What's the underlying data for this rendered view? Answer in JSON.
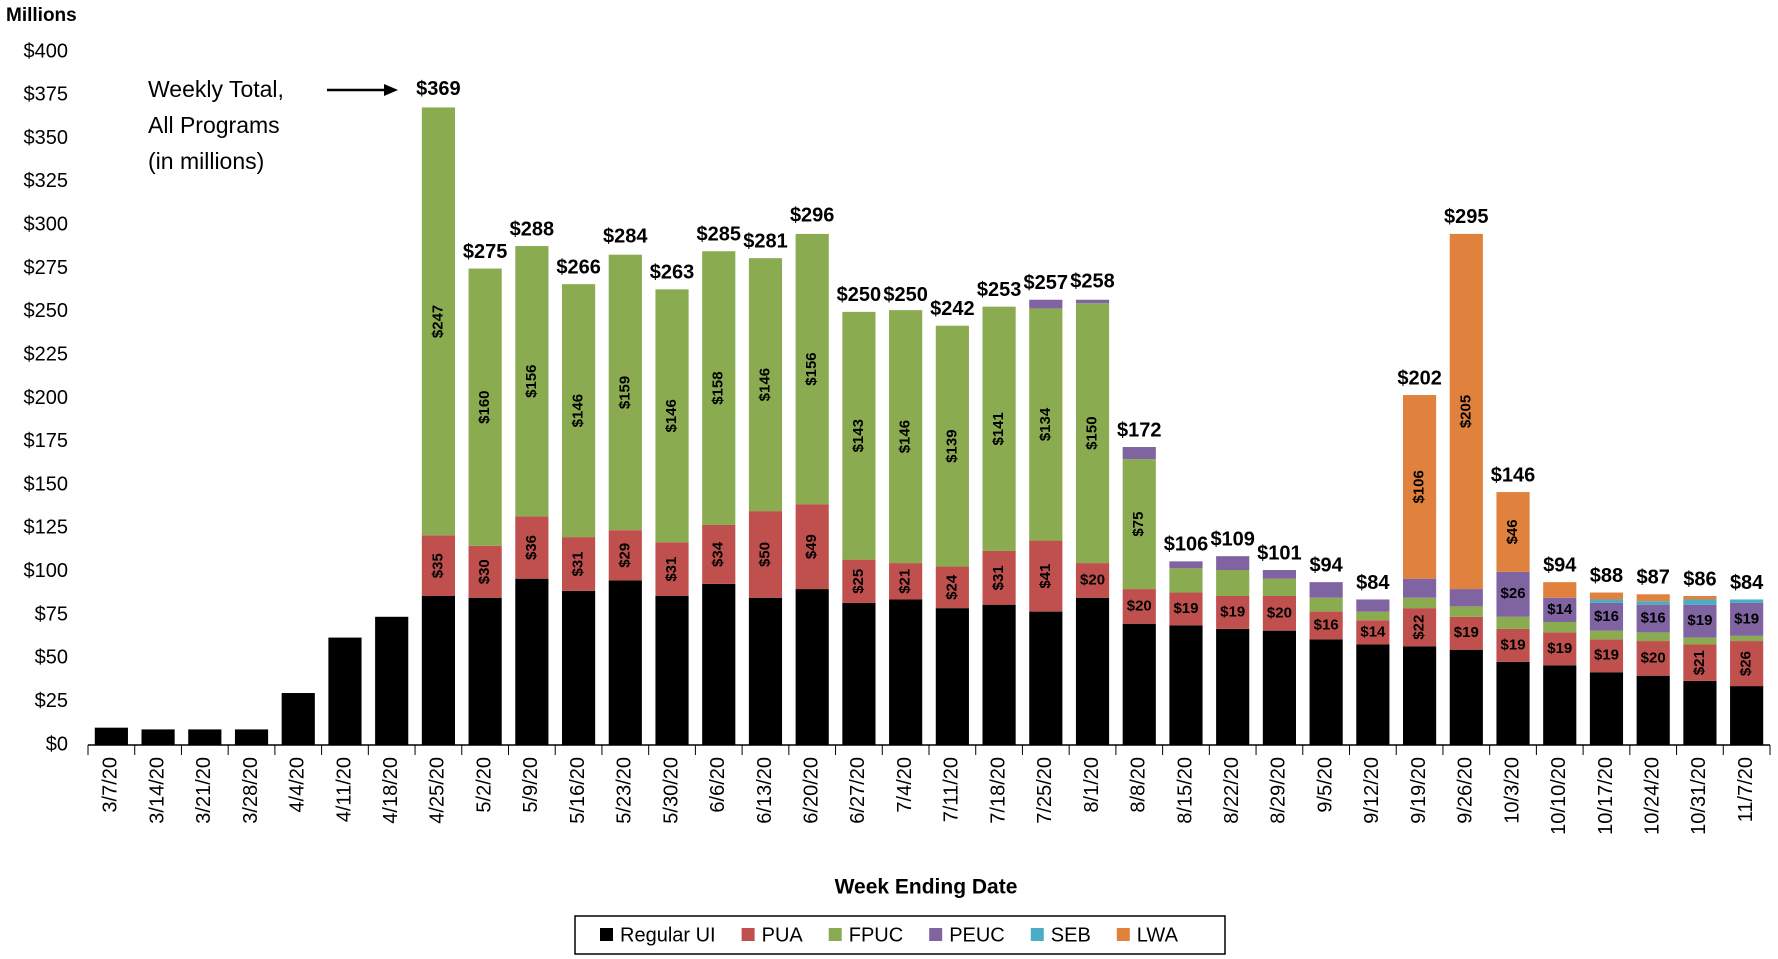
{
  "chart_data": {
    "type": "stacked-bar",
    "y_axis_title": "Millions",
    "x_axis_title": "Week Ending Date",
    "annotation": [
      "Weekly Total,",
      "All Programs",
      "(in millions)"
    ],
    "categories": [
      "3/7/20",
      "3/14/20",
      "3/21/20",
      "3/28/20",
      "4/4/20",
      "4/11/20",
      "4/18/20",
      "4/25/20",
      "5/2/20",
      "5/9/20",
      "5/16/20",
      "5/23/20",
      "5/30/20",
      "6/6/20",
      "6/13/20",
      "6/20/20",
      "6/27/20",
      "7/4/20",
      "7/11/20",
      "7/18/20",
      "7/25/20",
      "8/1/20",
      "8/8/20",
      "8/15/20",
      "8/22/20",
      "8/29/20",
      "9/5/20",
      "9/12/20",
      "9/19/20",
      "9/26/20",
      "10/3/20",
      "10/10/20",
      "10/17/20",
      "10/24/20",
      "10/31/20",
      "11/7/20"
    ],
    "series": [
      {
        "name": "Regular UI",
        "color": "#000000",
        "values": [
          10,
          9,
          9,
          9,
          30,
          62,
          74,
          86,
          85,
          96,
          89,
          95,
          86,
          93,
          85,
          90,
          82,
          84,
          79,
          81,
          77,
          85,
          70,
          69,
          67,
          66,
          61,
          58,
          57,
          55,
          48,
          46,
          42,
          40,
          37,
          34
        ],
        "value_labels": [
          null,
          null,
          null,
          null,
          "$30",
          "$62",
          "$74",
          "$86",
          "$85",
          "$96",
          "$89",
          "$95",
          "$86",
          "$93",
          "$85",
          "$90",
          "$82",
          "$84",
          "$79",
          "$81",
          "$77",
          "$85",
          "$70",
          "$69",
          "$67",
          "$66",
          "$61",
          "$58",
          "$57",
          "$55",
          "$48",
          "$46",
          "$42",
          "$40",
          "$37",
          "$34"
        ]
      },
      {
        "name": "PUA",
        "color": "#c0504d",
        "values": [
          0,
          0,
          0,
          0,
          0,
          0,
          0,
          35,
          30,
          36,
          31,
          29,
          31,
          34,
          50,
          49,
          25,
          21,
          24,
          31,
          41,
          20,
          20,
          19,
          19,
          20,
          16,
          14,
          22,
          19,
          19,
          19,
          19,
          20,
          21,
          26
        ],
        "value_labels": [
          null,
          null,
          null,
          null,
          null,
          null,
          null,
          "$35",
          "$30",
          "$36",
          "$31",
          "$29",
          "$31",
          "$34",
          "$50",
          "$49",
          "$25",
          "$21",
          "$24",
          "$31",
          "$41",
          "$20",
          "$20",
          "$19",
          "$19",
          "$20",
          "$16",
          "$14",
          "$22",
          "$19",
          "$19",
          "$19",
          "$19",
          "$20",
          "$21",
          "$26"
        ]
      },
      {
        "name": "FPUC",
        "color": "#8aab4f",
        "values": [
          0,
          0,
          0,
          0,
          0,
          0,
          0,
          247,
          160,
          156,
          146,
          159,
          146,
          158,
          146,
          156,
          143,
          146,
          139,
          141,
          134,
          150,
          75,
          14,
          15,
          10,
          8,
          5,
          6,
          6,
          7,
          6,
          5,
          5,
          4,
          3
        ],
        "value_labels": [
          null,
          null,
          null,
          null,
          null,
          null,
          null,
          "$247",
          "$160",
          "$156",
          "$146",
          "$159",
          "$146",
          "$158",
          "$146",
          "$156",
          "$143",
          "$146",
          "$139",
          "$141",
          "$134",
          "$150",
          "$75",
          null,
          null,
          null,
          null,
          null,
          null,
          null,
          null,
          null,
          null,
          null,
          null,
          null
        ]
      },
      {
        "name": "PEUC",
        "color": "#8064a2",
        "values": [
          0,
          0,
          0,
          0,
          0,
          0,
          0,
          0,
          0,
          0,
          0,
          0,
          0,
          0,
          0,
          0,
          0,
          0,
          0,
          0,
          5,
          2,
          7,
          4,
          8,
          5,
          9,
          7,
          11,
          10,
          26,
          14,
          16,
          16,
          19,
          19
        ],
        "value_labels": [
          null,
          null,
          null,
          null,
          null,
          null,
          null,
          null,
          null,
          null,
          null,
          null,
          null,
          null,
          null,
          null,
          null,
          null,
          null,
          null,
          null,
          null,
          null,
          null,
          null,
          null,
          null,
          null,
          null,
          null,
          "$26",
          "$14",
          "$16",
          "$16",
          "$19",
          "$19"
        ]
      },
      {
        "name": "SEB",
        "color": "#4bacc6",
        "values": [
          0,
          0,
          0,
          0,
          0,
          0,
          0,
          0,
          0,
          0,
          0,
          0,
          0,
          0,
          0,
          0,
          0,
          0,
          0,
          0,
          0,
          0,
          0,
          0,
          0,
          0,
          0,
          0,
          0,
          0,
          0,
          0,
          2,
          2,
          3,
          2
        ],
        "value_labels": [
          null,
          null,
          null,
          null,
          null,
          null,
          null,
          null,
          null,
          null,
          null,
          null,
          null,
          null,
          null,
          null,
          null,
          null,
          null,
          null,
          null,
          null,
          null,
          null,
          null,
          null,
          null,
          null,
          null,
          null,
          null,
          null,
          null,
          null,
          null,
          null
        ]
      },
      {
        "name": "LWA",
        "color": "#e0823d",
        "values": [
          0,
          0,
          0,
          0,
          0,
          0,
          0,
          0,
          0,
          0,
          0,
          0,
          0,
          0,
          0,
          0,
          0,
          0,
          0,
          0,
          0,
          0,
          0,
          0,
          0,
          0,
          0,
          0,
          106,
          205,
          46,
          9,
          4,
          4,
          2,
          0
        ],
        "value_labels": [
          null,
          null,
          null,
          null,
          null,
          null,
          null,
          null,
          null,
          null,
          null,
          null,
          null,
          null,
          null,
          null,
          null,
          null,
          null,
          null,
          null,
          null,
          null,
          null,
          null,
          null,
          null,
          null,
          "$106",
          "$205",
          "$46",
          null,
          null,
          null,
          null,
          null
        ]
      }
    ],
    "totals": {
      "values": [
        null,
        null,
        null,
        null,
        null,
        null,
        null,
        369,
        275,
        288,
        266,
        284,
        263,
        285,
        281,
        296,
        250,
        250,
        242,
        253,
        257,
        258,
        172,
        106,
        109,
        101,
        94,
        84,
        202,
        295,
        146,
        94,
        88,
        87,
        86,
        84
      ],
      "value_labels": [
        null,
        null,
        null,
        null,
        null,
        null,
        null,
        "$369",
        "$275",
        "$288",
        "$266",
        "$284",
        "$263",
        "$285",
        "$281",
        "$296",
        "$250",
        "$250",
        "$242",
        "$253",
        "$257",
        "$258",
        "$172",
        "$106",
        "$109",
        "$101",
        "$94",
        "$84",
        "$202",
        "$295",
        "$146",
        "$94",
        "$88",
        "$87",
        "$86",
        "$84"
      ]
    },
    "ylim": [
      0,
      400
    ],
    "yticks": [
      {
        "value": 0,
        "label": "$0"
      },
      {
        "value": 25,
        "label": "$25"
      },
      {
        "value": 50,
        "label": "$50"
      },
      {
        "value": 75,
        "label": "$75"
      },
      {
        "value": 100,
        "label": "$100"
      },
      {
        "value": 125,
        "label": "$125"
      },
      {
        "value": 150,
        "label": "$150"
      },
      {
        "value": 175,
        "label": "$175"
      },
      {
        "value": 200,
        "label": "$200"
      },
      {
        "value": 225,
        "label": "$225"
      },
      {
        "value": 250,
        "label": "$250"
      },
      {
        "value": 275,
        "label": "$275"
      },
      {
        "value": 300,
        "label": "$300"
      },
      {
        "value": 325,
        "label": "$325"
      },
      {
        "value": 350,
        "label": "$350"
      },
      {
        "value": 375,
        "label": "$375"
      },
      {
        "value": 400,
        "label": "$400"
      }
    ],
    "grid": false
  }
}
